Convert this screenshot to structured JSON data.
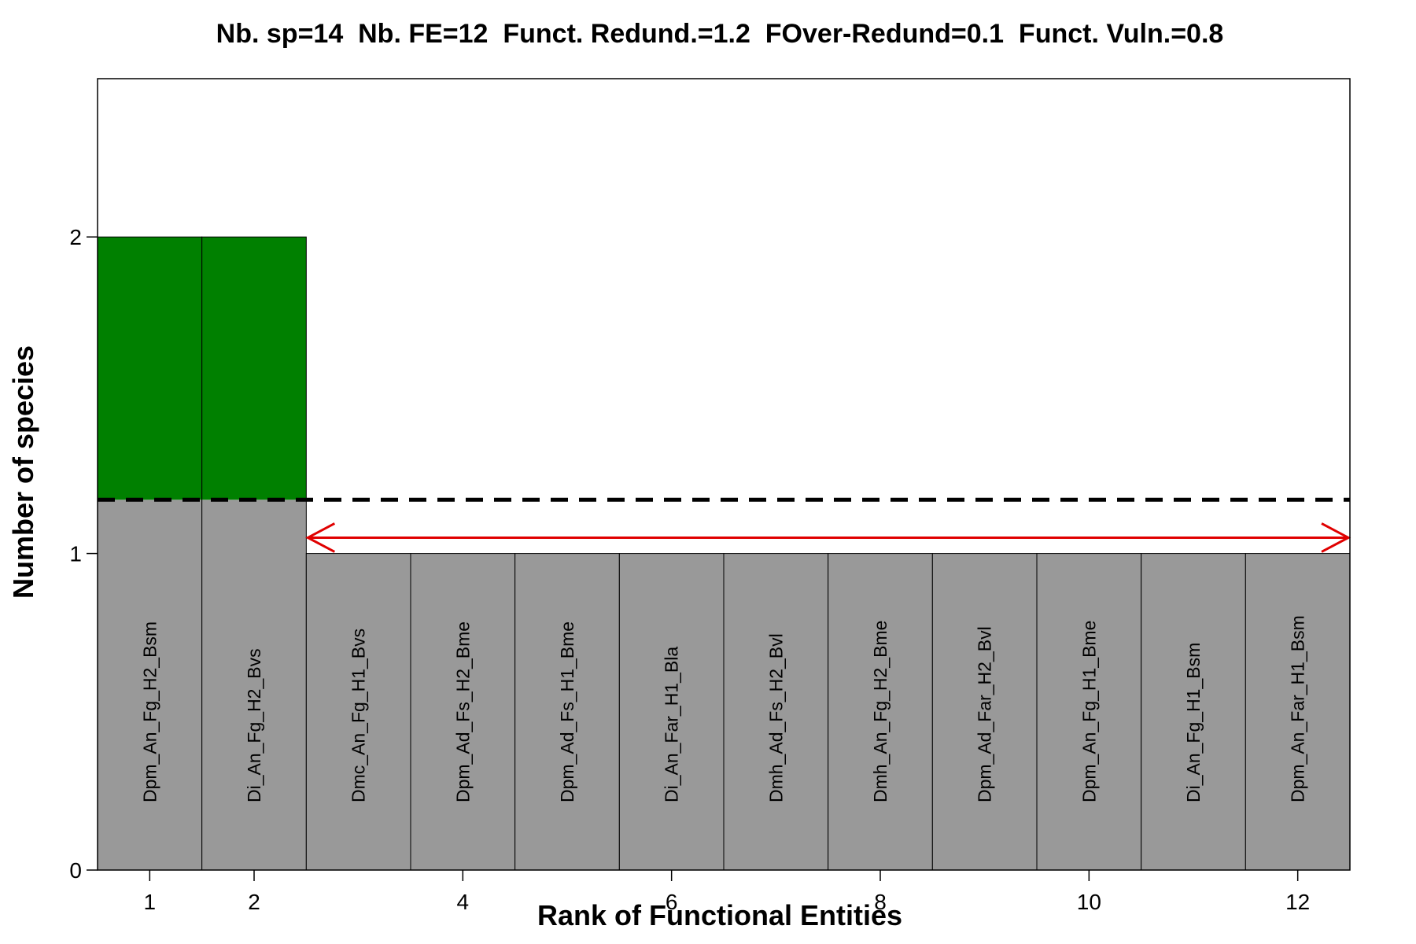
{
  "chart_data": {
    "type": "bar",
    "title": "Nb. sp=14  Nb. FE=12  Funct. Redund.=1.2  FOver-Redund=0.1  Funct. Vuln.=0.8",
    "xlabel": "Rank of Functional Entities",
    "ylabel": "Number of species",
    "xlim": [
      0.5,
      12.5
    ],
    "ylim": [
      0,
      2.5
    ],
    "x_ticks": [
      1,
      2,
      4,
      6,
      8,
      10,
      12
    ],
    "x_tick_labels": [
      "1",
      "2",
      "4",
      "6",
      "8",
      "10",
      "12"
    ],
    "y_ticks": [
      0,
      1,
      2
    ],
    "y_tick_labels": [
      "0",
      "1",
      "2"
    ],
    "grid": false,
    "legend": "none",
    "ranks": [
      1,
      2,
      3,
      4,
      5,
      6,
      7,
      8,
      9,
      10,
      11,
      12
    ],
    "categories": [
      "Dpm_An_Fg_H2_Bsm",
      "Di_An_Fg_H2_Bvs",
      "Dmc_An_Fg_H1_Bvs",
      "Dpm_Ad_Fs_H2_Bme",
      "Dpm_Ad_Fs_H1_Bme",
      "Di_An_Far_H1_Bla",
      "Dmh_Ad_Fs_H2_Bvl",
      "Dmh_An_Fg_H2_Bme",
      "Dpm_Ad_Far_H2_Bvl",
      "Dpm_An_Fg_H1_Bme",
      "Di_An_Fg_H1_Bsm",
      "Dpm_An_Far_H1_Bsm"
    ],
    "values": [
      2,
      2,
      1,
      1,
      1,
      1,
      1,
      1,
      1,
      1,
      1,
      1
    ],
    "mean_redundancy": 1.17,
    "vulnerable_range": [
      2.5,
      12.5
    ],
    "vulnerable_y": 1.05,
    "colors": {
      "below_mean": "#999999",
      "above_mean": "#008000",
      "bar_border": "#000000",
      "mean_line": "#000000",
      "arrow": "#e00000"
    }
  }
}
